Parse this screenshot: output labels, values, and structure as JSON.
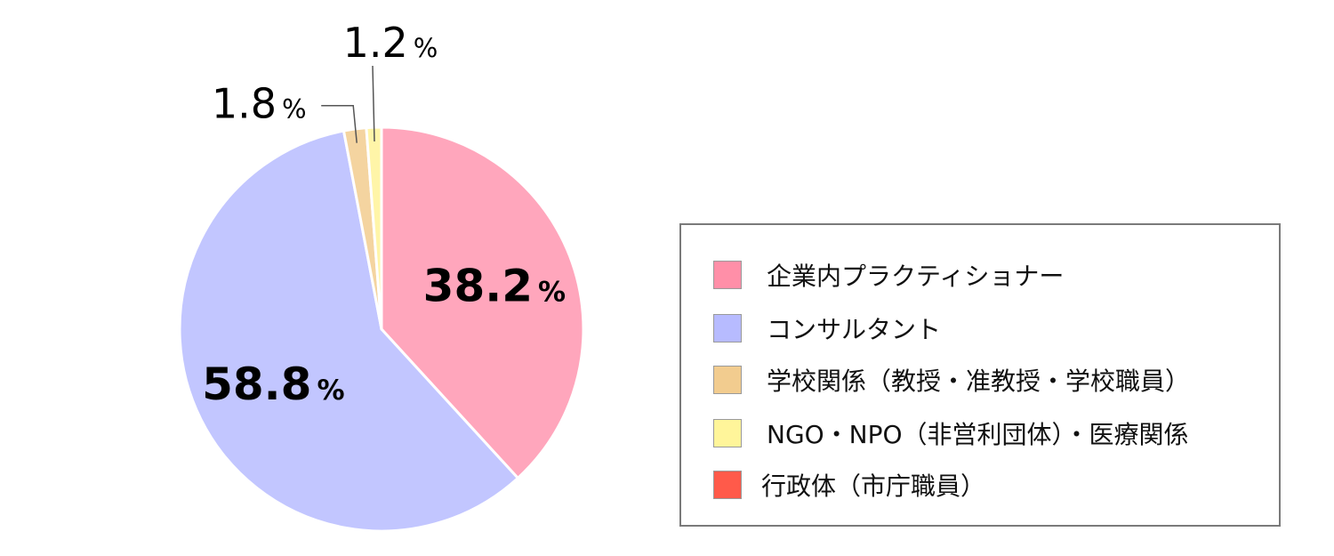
{
  "chart_data": {
    "type": "pie",
    "title": "",
    "slices": [
      {
        "label": "企業内プラクティショナー",
        "value": 38.2,
        "display": "38.2",
        "unit": "%",
        "color": "#FFA6BC",
        "swatch_color": "#FF8FA8"
      },
      {
        "label": "行政体（市庁職員）",
        "value": 0,
        "display": "",
        "unit": "",
        "color": "#FF5A4A",
        "swatch_color": "#FF5A4A"
      },
      {
        "label": "コンサルタント",
        "value": 58.8,
        "display": "58.8",
        "unit": "%",
        "color": "#C2C6FF",
        "swatch_color": "#B7BBFF"
      },
      {
        "label": "学校関係（教授・准教授・学校職員）",
        "value": 1.8,
        "display": "1.8",
        "unit": "%",
        "color": "#F4D4A0",
        "swatch_color": "#F2CC8F"
      },
      {
        "label": "NGO・NPO（非営利団体）・医療関係",
        "value": 1.2,
        "display": "1.2",
        "unit": "%",
        "color": "#FFF5A8",
        "swatch_color": "#FFF59A"
      }
    ],
    "legend": {
      "position": "right",
      "entries": [
        {
          "label": "企業内プラクティショナー",
          "color": "#FF8FA8"
        },
        {
          "label": "コンサルタント",
          "color": "#B7BBFF"
        },
        {
          "label": "学校関係（教授・准教授・学校職員）",
          "color": "#F2CC8F"
        },
        {
          "label": "NGO・NPO（非営利団体）・医療関係",
          "color": "#FFF59A"
        },
        {
          "label": "行政体（市庁職員）",
          "color": "#FF5A4A"
        }
      ]
    }
  }
}
